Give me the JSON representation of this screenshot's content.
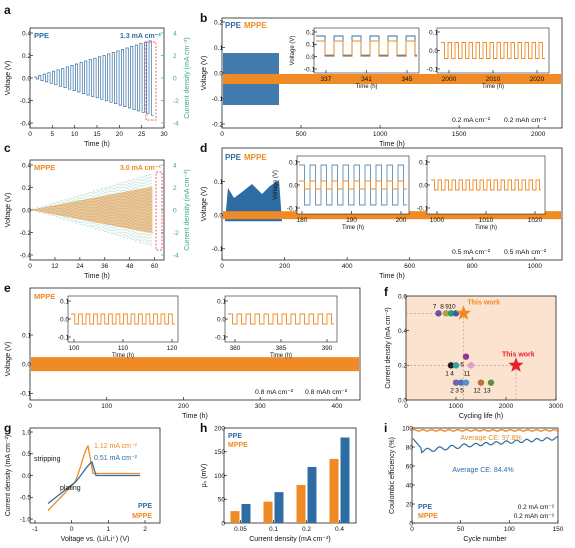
{
  "colors": {
    "ppe": "#2e6da4",
    "mppe": "#f08a24",
    "cd_a": "#4a7fb3",
    "cd_c": "#3aa58a",
    "red": "#e8202a",
    "star_orange": "#f08a24"
  },
  "panels": {
    "a": {
      "label": "a",
      "tag": "PPE",
      "annotation": "1.3 mA cm⁻²",
      "ylabel": "Voltage (V)",
      "y2label": "Current density (mA cm⁻²)",
      "xlabel": "Time (h)",
      "xticks": [
        "0",
        "5",
        "10",
        "15",
        "20",
        "25",
        "30"
      ],
      "yticks": [
        "0.4",
        "0.2",
        "0.0",
        "-0.2",
        "-0.4"
      ],
      "y2ticks": [
        "4",
        "2",
        "0",
        "-2",
        "-4"
      ]
    },
    "b": {
      "label": "b",
      "tag1": "PPE",
      "tag2": "MPPE",
      "ylabel": "Voltage (V)",
      "xlabel": "Time (h)",
      "xticks": [
        "0",
        "500",
        "1000",
        "1500",
        "2000"
      ],
      "yticks": [
        "0.2",
        "0.1",
        "0.0",
        "-0.1",
        "-0.2"
      ],
      "cond1": "0.2 mA cm⁻²",
      "cond2": "0.2 mAh cm⁻²",
      "inset1": {
        "ylabel": "Voltage (V)",
        "xlabel": "Time (h)",
        "xticks": [
          "337",
          "341",
          "345"
        ],
        "yticks": [
          "0.2",
          "0.1",
          "0.0",
          "-0.1"
        ]
      },
      "inset2": {
        "xlabel": "Time (h)",
        "xticks": [
          "2000",
          "2010",
          "2020"
        ],
        "yticks": [
          "0.1",
          "0.0",
          "-0.1"
        ]
      }
    },
    "c": {
      "label": "c",
      "tag": "MPPE",
      "annotation": "3.0 mA cm⁻²",
      "ylabel": "Voltage (V)",
      "y2label": "Current density (mA cm⁻²)",
      "xlabel": "Time (h)",
      "xticks": [
        "0",
        "12",
        "24",
        "36",
        "48",
        "60"
      ],
      "yticks": [
        "0.4",
        "0.2",
        "0.0",
        "-0.2",
        "-0.4"
      ],
      "y2ticks": [
        "4",
        "2",
        "0",
        "-2",
        "-4"
      ]
    },
    "d": {
      "label": "d",
      "tag1": "PPE",
      "tag2": "MPPE",
      "ylabel": "Voltage (V)",
      "xlabel": "Time (h)",
      "xticks": [
        "0",
        "200",
        "400",
        "600",
        "800",
        "1000"
      ],
      "yticks": [
        "0.1",
        "0.0",
        "-0.1"
      ],
      "cond1": "0.5 mA cm⁻²",
      "cond2": "0.5 mAh cm⁻²",
      "inset1": {
        "ylabel": "Voltage (V)",
        "xlabel": "Time (h)",
        "xticks": [
          "180",
          "190",
          "200"
        ],
        "yticks": [
          "0.1",
          "0.0",
          "-0.1"
        ]
      },
      "inset2": {
        "xlabel": "Time (h)",
        "xticks": [
          "1000",
          "1010",
          "1020"
        ],
        "yticks": [
          "0.1",
          "0.0",
          "-0.1"
        ]
      }
    },
    "e": {
      "label": "e",
      "tag": "MPPE",
      "ylabel": "Voltage (V)",
      "xlabel": "Time (h)",
      "xticks": [
        "0",
        "100",
        "200",
        "300",
        "400"
      ],
      "yticks": [
        "0.1",
        "0.0",
        "-0.1"
      ],
      "cond1": "0.8 mA cm⁻²",
      "cond2": "0.8 mAh cm⁻²",
      "inset1": {
        "xlabel": "Time (h)",
        "xticks": [
          "100",
          "110",
          "120"
        ],
        "yticks": [
          "0.1",
          "0.0",
          "-0.1"
        ]
      },
      "inset2": {
        "xlabel": "Time (h)",
        "xticks": [
          "380",
          "385",
          "390"
        ],
        "yticks": [
          "0.1",
          "0.0",
          "-0.1"
        ]
      }
    },
    "f": {
      "label": "f",
      "ylabel": "Current density (mA cm⁻²)",
      "xlabel": "Cycling life (h)",
      "xticks": [
        "0",
        "1000",
        "2000",
        "3000"
      ],
      "yticks": [
        "0.6",
        "0.4",
        "0.2",
        "0.0"
      ],
      "this_work": "This work"
    },
    "g": {
      "label": "g",
      "ylabel": "Current density (mA cm⁻²)",
      "xlabel": "Voltage vs. (Li/Li⁺) (V)",
      "xticks": [
        "-1",
        "0",
        "1",
        "2"
      ],
      "yticks": [
        "1.0",
        "0.5",
        "0.0",
        "-0.5",
        "-1.0"
      ],
      "ann1": "1.12 mA cm⁻²",
      "ann2": "0.51 mA cm⁻²",
      "stripping": "stripping",
      "plating": "plating",
      "leg1": "PPE",
      "leg2": "MPPE"
    },
    "h": {
      "label": "h",
      "ylabel": "μₛ (mV)",
      "xlabel": "Current density (mA cm⁻²)",
      "yticks": [
        "200",
        "150",
        "100",
        "50",
        "0"
      ],
      "leg1": "PPE",
      "leg2": "MPPE"
    },
    "i": {
      "label": "i",
      "ylabel": "Coulombic efficiency (%)",
      "xlabel": "Cycle number",
      "xticks": [
        "0",
        "50",
        "100",
        "150"
      ],
      "yticks": [
        "100",
        "80",
        "60",
        "40",
        "20",
        "0"
      ],
      "ce1": "Average CE: 97.8%",
      "ce2": "Average CE: 84.4%",
      "leg1": "PPE",
      "leg2": "MPPE",
      "cond1": "0.2 mA cm⁻²",
      "cond2": "0.2 mAh cm⁻²"
    }
  },
  "chart_data": [
    {
      "panel": "f",
      "type": "scatter",
      "xlabel": "Cycling life (h)",
      "ylabel": "Current density (mA cm⁻²)",
      "xlim": [
        0,
        3000
      ],
      "ylim": [
        0,
        0.6
      ],
      "points": [
        {
          "label": "1",
          "x": 900,
          "y": 0.2,
          "color": "#222222"
        },
        {
          "label": "2",
          "x": 1000,
          "y": 0.1,
          "color": "#7a5fb0"
        },
        {
          "label": "3",
          "x": 1100,
          "y": 0.1,
          "color": "#4a6fc0"
        },
        {
          "label": "4",
          "x": 1000,
          "y": 0.2,
          "color": "#39a0a0"
        },
        {
          "label": "5",
          "x": 1200,
          "y": 0.1,
          "color": "#5a8fd0"
        },
        {
          "label": "6",
          "x": 1200,
          "y": 0.25,
          "color": "#9a3090"
        },
        {
          "label": "7",
          "x": 650,
          "y": 0.5,
          "color": "#6a50a0"
        },
        {
          "label": "8",
          "x": 800,
          "y": 0.5,
          "color": "#b0a040"
        },
        {
          "label": "9",
          "x": 900,
          "y": 0.5,
          "color": "#2a9a6a"
        },
        {
          "label": "10",
          "x": 1000,
          "y": 0.5,
          "color": "#3060b0"
        },
        {
          "label": "11",
          "x": 1300,
          "y": 0.2,
          "color": "#e0a0c0"
        },
        {
          "label": "12",
          "x": 1500,
          "y": 0.1,
          "color": "#c07030"
        },
        {
          "label": "13",
          "x": 1700,
          "y": 0.1,
          "color": "#5a9040"
        }
      ],
      "this_work": [
        {
          "x": 1150,
          "y": 0.5,
          "color": "#f08a24"
        },
        {
          "x": 2200,
          "y": 0.2,
          "color": "#e8202a"
        }
      ]
    },
    {
      "panel": "h",
      "type": "bar",
      "xlabel": "Current density (mA cm⁻²)",
      "ylabel": "μₛ (mV)",
      "ylim": [
        0,
        200
      ],
      "categories": [
        "0.05",
        "0.1",
        "0.2",
        "0.4"
      ],
      "series": [
        {
          "name": "MPPE",
          "values": [
            25,
            45,
            80,
            135
          ]
        },
        {
          "name": "PPE",
          "values": [
            40,
            65,
            118,
            180
          ]
        }
      ]
    },
    {
      "panel": "i",
      "type": "line",
      "xlabel": "Cycle number",
      "ylabel": "Coulombic efficiency (%)",
      "xlim": [
        0,
        150
      ],
      "ylim": [
        0,
        100
      ],
      "series": [
        {
          "name": "MPPE",
          "average": 97.8
        },
        {
          "name": "PPE",
          "average": 84.4
        }
      ]
    }
  ]
}
